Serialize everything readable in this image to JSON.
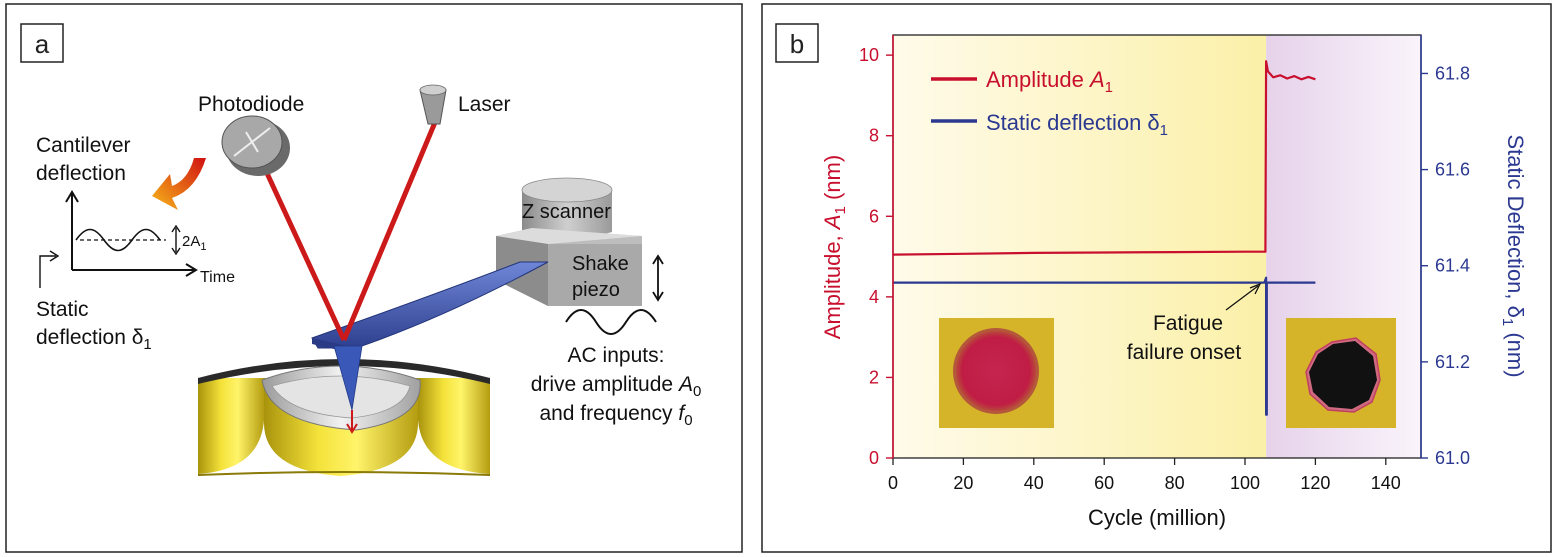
{
  "panel_a": {
    "label": "a",
    "photodiode": "Photodiode",
    "laser": "Laser",
    "cantilever_deflection_1": "Cantilever",
    "cantilever_deflection_2": "deflection",
    "two_a1": "2A",
    "two_a1_sub": "1",
    "time": "Time",
    "static_1": "Static",
    "static_2": "deflection δ",
    "static_sub": "1",
    "z_scanner": "Z scanner",
    "shake_1": "Shake",
    "shake_2": "piezo",
    "ac_1": "AC inputs:",
    "ac_2_pre": "drive amplitude ",
    "ac_2_var": "A",
    "ac_2_sub": "0",
    "ac_3_pre": "and frequency ",
    "ac_3_var": "f",
    "ac_3_sub": "0"
  },
  "panel_b": {
    "label": "b",
    "annotation_1": "Fatigue",
    "annotation_2": "failure onset",
    "legend": {
      "amp_pre": "Amplitude ",
      "amp_var": "A",
      "amp_sub": "1",
      "def_pre": "Static deflection δ",
      "def_sub": "1"
    },
    "ylabel_left": {
      "pre": "Amplitude, ",
      "var": "A",
      "sub": "1",
      "post": " (nm)"
    },
    "ylabel_right": {
      "pre": "Static Deflection, δ",
      "sub": "1",
      "post": " (nm)"
    }
  },
  "colors": {
    "amplitude": "#c8102e",
    "deflection": "#2b3990",
    "gold": "#d9c21a",
    "cantilever": "#3a4fa8",
    "laser": "#cc1a1a"
  },
  "chart_data": {
    "type": "line",
    "title": "",
    "xlabel": "Cycle (million)",
    "xlim": [
      0,
      150
    ],
    "x_ticks": [
      "0",
      "20",
      "40",
      "60",
      "80",
      "100",
      "120",
      "140"
    ],
    "ylim_left": [
      0,
      10.5
    ],
    "y_ticks_left": [
      "0",
      "2",
      "4",
      "6",
      "8",
      "10"
    ],
    "ylim_right": [
      61.0,
      61.88
    ],
    "y_ticks_right": [
      "61.0",
      "61.2",
      "61.4",
      "61.6",
      "61.8"
    ],
    "failure_onset_cycle": 106,
    "series": [
      {
        "name": "Amplitude A1",
        "axis": "left",
        "x": [
          0,
          20,
          40,
          60,
          80,
          100,
          105.8,
          106.0,
          106.5,
          108,
          110,
          112,
          114,
          116,
          118,
          120
        ],
        "y": [
          5.05,
          5.07,
          5.09,
          5.1,
          5.11,
          5.12,
          5.12,
          9.85,
          9.6,
          9.45,
          9.5,
          9.42,
          9.48,
          9.4,
          9.46,
          9.4
        ]
      },
      {
        "name": "Static deflection δ1",
        "axis": "right",
        "x": [
          0,
          105.5,
          106.0,
          106.0,
          106.2,
          106.2,
          106.6,
          120
        ],
        "y": [
          61.365,
          61.365,
          61.375,
          61.09,
          61.09,
          61.365,
          61.365,
          61.365
        ]
      }
    ],
    "legend": "top-left"
  }
}
